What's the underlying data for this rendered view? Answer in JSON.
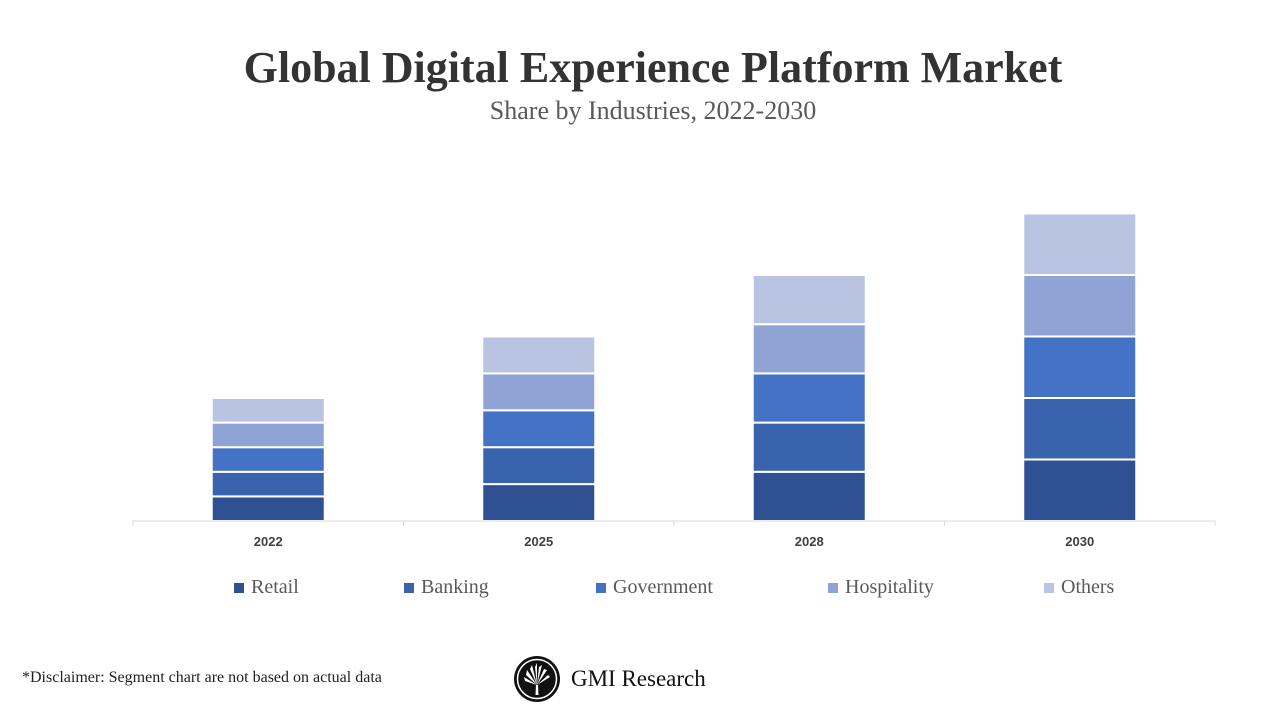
{
  "chart_data": {
    "type": "bar",
    "stacked": true,
    "title": "Global Digital Experience Platform Market",
    "subtitle": "Share by Industries, 2022-2030",
    "categories": [
      "2022",
      "2025",
      "2028",
      "2030"
    ],
    "series": [
      {
        "name": "Retail",
        "color": "#2f5194",
        "values": [
          1,
          1.5,
          2,
          2.5
        ]
      },
      {
        "name": "Banking",
        "color": "#3a63ad",
        "values": [
          1,
          1.5,
          2,
          2.5
        ]
      },
      {
        "name": "Government",
        "color": "#4472c4",
        "values": [
          1,
          1.5,
          2,
          2.5
        ]
      },
      {
        "name": "Hospitality",
        "color": "#8fa3d5",
        "values": [
          1,
          1.5,
          2,
          2.5
        ]
      },
      {
        "name": "Others",
        "color": "#b9c4e3",
        "values": [
          1,
          1.5,
          2,
          2.5
        ]
      }
    ],
    "xlabel": "",
    "ylabel": "",
    "y_axis_visible": false,
    "grid": false,
    "legend_position": "bottom"
  },
  "footer": {
    "disclaimer": "*Disclaimer:   Segment chart are not based on actual data",
    "brand": "GMI Research"
  }
}
